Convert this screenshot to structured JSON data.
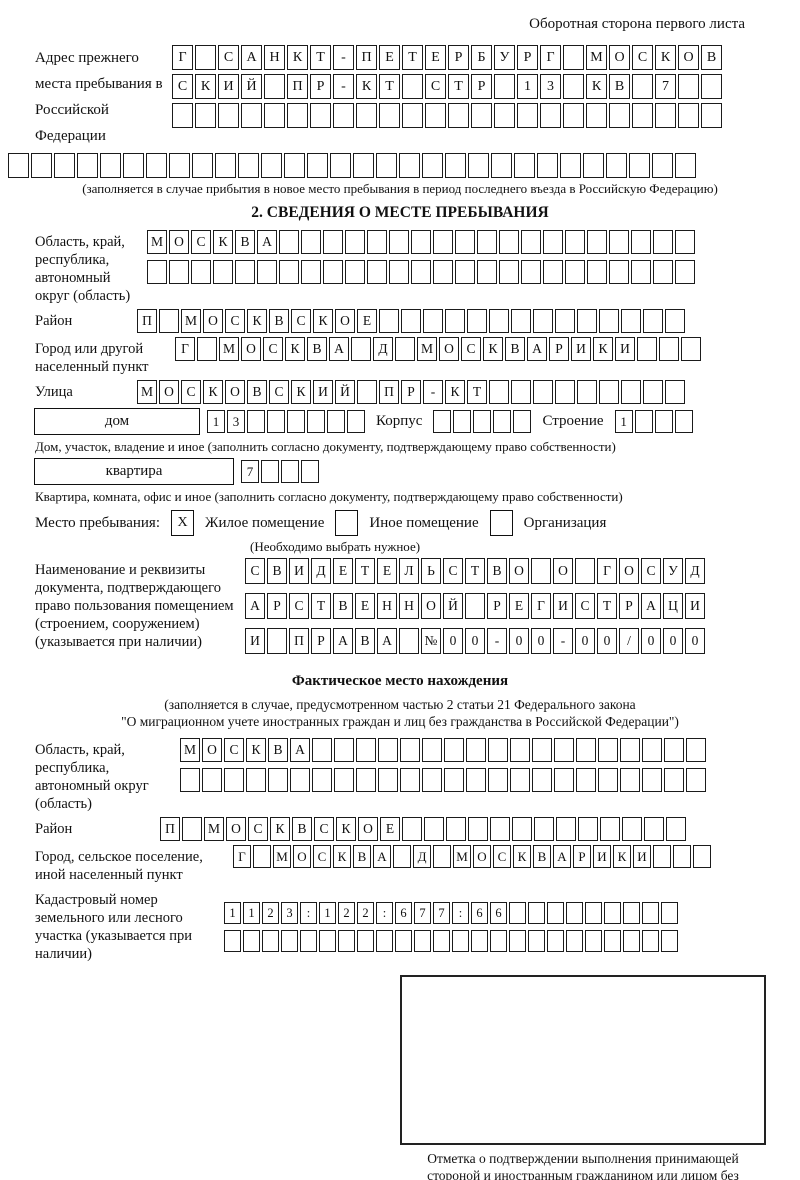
{
  "page": {
    "header_note": "Оборотная сторона первого листа"
  },
  "prev_address": {
    "label": "Адрес прежнего места пребывания в Российской Федерации",
    "rows": [
      [
        "Г",
        "",
        "С",
        "А",
        "Н",
        "К",
        "Т",
        "-",
        "П",
        "Е",
        "Т",
        "Е",
        "Р",
        "Б",
        "У",
        "Р",
        "Г",
        "",
        "М",
        "О",
        "С",
        "К",
        "О",
        "В"
      ],
      [
        "С",
        "К",
        "И",
        "Й",
        "",
        "П",
        "Р",
        "-",
        "К",
        "Т",
        "",
        "С",
        "Т",
        "Р",
        "",
        "1",
        "3",
        "",
        "К",
        "В",
        "",
        "7",
        "",
        ""
      ],
      24
    ],
    "full_row": 30,
    "footnote": "(заполняется в случае прибытия в новое место пребывания в период последнего въезда в Российскую Федерацию)"
  },
  "section2": {
    "title": "2. СВЕДЕНИЯ О МЕСТЕ ПРЕБЫВАНИЯ",
    "region": {
      "label": "Область, край, республика, автономный округ (область)",
      "rows": [
        [
          "М",
          "О",
          "С",
          "К",
          "В",
          "А",
          "",
          "",
          "",
          "",
          "",
          "",
          "",
          "",
          "",
          "",
          "",
          "",
          "",
          "",
          "",
          "",
          "",
          "",
          ""
        ],
        25
      ]
    },
    "district": {
      "label": "Район",
      "row": [
        "П",
        "",
        "М",
        "О",
        "С",
        "К",
        "В",
        "С",
        "К",
        "О",
        "Е",
        "",
        "",
        "",
        "",
        "",
        "",
        "",
        "",
        "",
        "",
        "",
        "",
        "",
        ""
      ]
    },
    "city": {
      "label": "Город или другой населенный пункт",
      "row": [
        "Г",
        "",
        "М",
        "О",
        "С",
        "К",
        "В",
        "А",
        "",
        "Д",
        "",
        "М",
        "О",
        "С",
        "К",
        "В",
        "А",
        "Р",
        "И",
        "К",
        "И",
        "",
        "",
        ""
      ]
    },
    "street": {
      "label": "Улица",
      "row": [
        "М",
        "О",
        "С",
        "К",
        "О",
        "В",
        "С",
        "К",
        "И",
        "Й",
        "",
        "П",
        "Р",
        "-",
        "К",
        "Т",
        "",
        "",
        "",
        "",
        "",
        "",
        "",
        "",
        ""
      ]
    },
    "house": {
      "label": "дом",
      "cells": [
        "1",
        "3",
        "",
        "",
        "",
        "",
        "",
        ""
      ],
      "korpus_label": "Корпус",
      "korpus_cells": 5,
      "stroenie_label": "Строение",
      "stroenie_cells": [
        "1",
        "",
        "",
        ""
      ],
      "footnote": "Дом, участок, владение и иное (заполнить согласно документу, подтверждающему право собственности)"
    },
    "apartment": {
      "label": "квартира",
      "cells": [
        "7",
        "",
        "",
        ""
      ],
      "footnote": "Квартира, комната, офис и иное (заполнить согласно документу, подтверждающему право собственности)"
    },
    "stay": {
      "label": "Место пребывания:",
      "checked": "X",
      "options": [
        "Жилое помещение",
        "Иное помещение",
        "Организация"
      ],
      "footnote": "(Необходимо выбрать нужное)"
    },
    "document": {
      "label": "Наименование и реквизиты документа, подтверждающего право пользования помещением (строением, сооружением) (указывается при наличии)",
      "rows": [
        [
          "С",
          "В",
          "И",
          "Д",
          "Е",
          "Т",
          "Е",
          "Л",
          "Ь",
          "С",
          "Т",
          "В",
          "О",
          "",
          "О",
          "",
          "Г",
          "О",
          "С",
          "У",
          "Д"
        ],
        [
          "А",
          "Р",
          "С",
          "Т",
          "В",
          "Е",
          "Н",
          "Н",
          "О",
          "Й",
          "",
          "Р",
          "Е",
          "Г",
          "И",
          "С",
          "Т",
          "Р",
          "А",
          "Ц",
          "И"
        ],
        [
          "И",
          "",
          "П",
          "Р",
          "А",
          "В",
          "А",
          "",
          "№",
          "0",
          "0",
          "-",
          "0",
          "0",
          "-",
          "0",
          "0",
          "/",
          "0",
          "0",
          "0"
        ]
      ]
    }
  },
  "actual": {
    "title": "Фактическое место нахождения",
    "note_line1": "(заполняется в случае, предусмотренном частью 2 статьи 21 Федерального закона",
    "note_line2": "\"О миграционном учете иностранных граждан и лиц без гражданства в Российской Федерации\")",
    "region": {
      "label": "Область, край, республика, автономный округ (область)",
      "rows": [
        [
          "М",
          "О",
          "С",
          "К",
          "В",
          "А",
          "",
          "",
          "",
          "",
          "",
          "",
          "",
          "",
          "",
          "",
          "",
          "",
          "",
          "",
          "",
          "",
          "",
          ""
        ],
        24
      ]
    },
    "district": {
      "label": "Район",
      "row": [
        "П",
        "",
        "М",
        "О",
        "С",
        "К",
        "В",
        "С",
        "К",
        "О",
        "Е",
        "",
        "",
        "",
        "",
        "",
        "",
        "",
        "",
        "",
        "",
        "",
        "",
        ""
      ]
    },
    "city": {
      "label": "Город, сельское поселение, иной населенный пункт",
      "row": [
        "Г",
        "",
        "М",
        "О",
        "С",
        "К",
        "В",
        "А",
        "",
        "Д",
        "",
        "М",
        "О",
        "С",
        "К",
        "В",
        "А",
        "Р",
        "И",
        "К",
        "И",
        "",
        "",
        ""
      ]
    },
    "cadastral": {
      "label": "Кадастровый номер земельного или лесного участка (указывается при наличии)",
      "rows": [
        [
          "1",
          "1",
          "2",
          "3",
          ":",
          "1",
          "2",
          "2",
          ":",
          "6",
          "7",
          "7",
          ":",
          "6",
          "6",
          "",
          "",
          "",
          "",
          "",
          "",
          "",
          "",
          ""
        ],
        24
      ]
    },
    "stamp_caption": "Отметка о подтверждении выполнения принимающей стороной и иностранным гражданином или лицом без гражданства действий, необходимых для его постановки на учет по месту пребывания"
  }
}
